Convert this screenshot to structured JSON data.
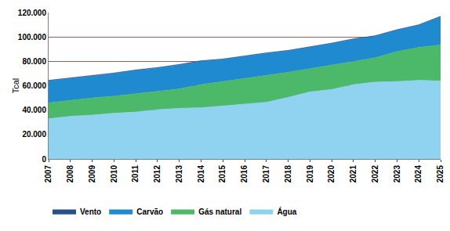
{
  "chart_data": {
    "type": "area",
    "stacked": true,
    "y_label": "Tcal",
    "categories": [
      "2007",
      "2008",
      "2009",
      "2010",
      "2011",
      "2012",
      "2013",
      "2014",
      "2015",
      "2016",
      "2017",
      "2018",
      "2019",
      "2020",
      "2021",
      "2022",
      "2023",
      "2024",
      "2025"
    ],
    "series": [
      {
        "name": "Água",
        "color": "#8fd3f0",
        "values": [
          33000,
          35000,
          36000,
          37500,
          38500,
          40500,
          41500,
          42000,
          43500,
          45000,
          46500,
          50500,
          55000,
          57000,
          61000,
          63000,
          63500,
          64500,
          64000
        ]
      },
      {
        "name": "Gás natural",
        "color": "#4cb86a",
        "values": [
          13000,
          13000,
          14000,
          14000,
          15000,
          15000,
          16000,
          19000,
          20000,
          21000,
          22000,
          20500,
          19000,
          20000,
          19000,
          20000,
          24500,
          27000,
          29500
        ]
      },
      {
        "name": "Carvão",
        "color": "#1f8ad0",
        "values": [
          18000,
          18000,
          18000,
          18500,
          19000,
          19000,
          19500,
          19000,
          18000,
          18000,
          18000,
          17500,
          17500,
          17500,
          18000,
          17500,
          17500,
          18000,
          23000
        ]
      },
      {
        "name": "Vento",
        "color": "#2a4f8f",
        "values": [
          500,
          500,
          500,
          500,
          500,
          500,
          500,
          500,
          500,
          500,
          500,
          500,
          500,
          500,
          500,
          500,
          500,
          500,
          500
        ]
      }
    ],
    "ylim": [
      0,
      120000
    ],
    "yticks": [
      0,
      {
        "value": 20000,
        "label": "20.000"
      },
      {
        "value": 40000,
        "label": "40.000"
      },
      {
        "value": 60000,
        "label": "60.000"
      },
      {
        "value": 80000,
        "label": "80.000"
      },
      {
        "value": 100000,
        "label": "100.000"
      },
      {
        "value": 120000,
        "label": "120.000"
      }
    ],
    "grid": true,
    "legend": "bottom"
  }
}
